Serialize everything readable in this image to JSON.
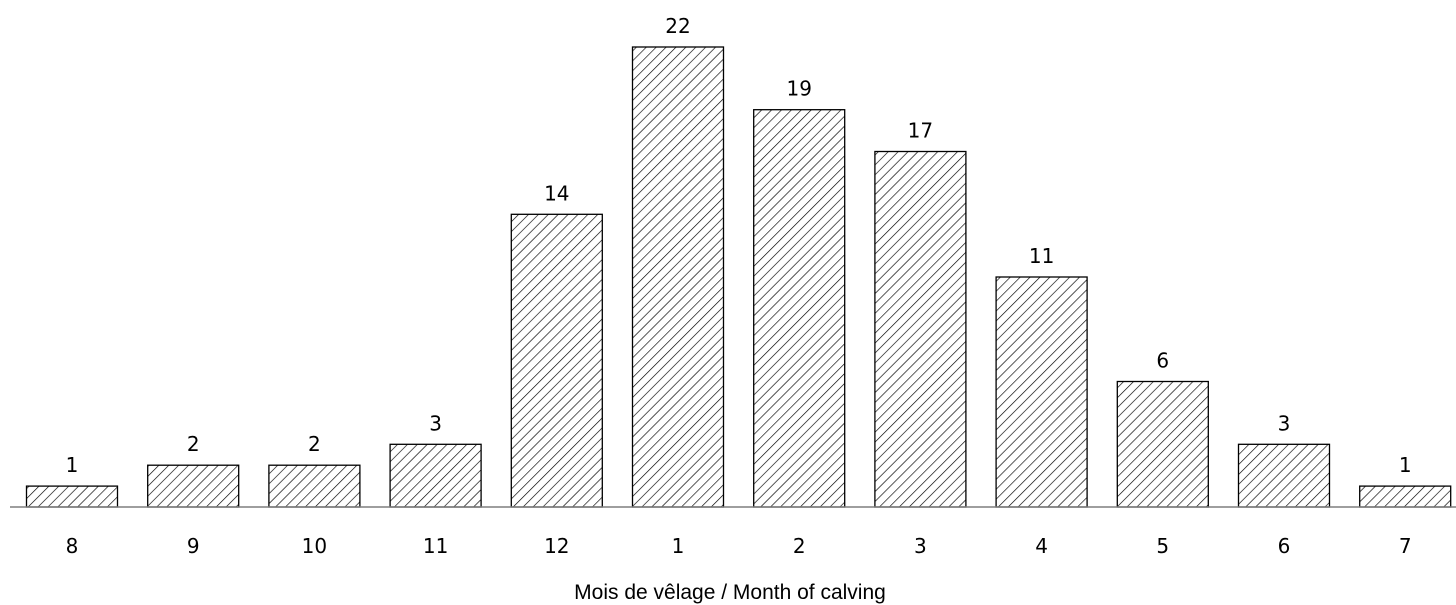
{
  "chart_data": {
    "type": "bar",
    "categories": [
      "8",
      "9",
      "10",
      "11",
      "12",
      "1",
      "2",
      "3",
      "4",
      "5",
      "6",
      "7"
    ],
    "values": [
      1,
      2,
      2,
      3,
      14,
      22,
      19,
      17,
      11,
      6,
      3,
      1
    ],
    "title": "",
    "xlabel": "Mois de vêlage / Month of calving",
    "ylabel": "",
    "ylim": [
      0,
      22.4
    ],
    "grid": false,
    "data_labels": true,
    "bar_fill": "diagonal-hatch",
    "colors": {
      "bar_stroke": "#000000",
      "hatch": "#000000",
      "background": "#ffffff"
    }
  }
}
